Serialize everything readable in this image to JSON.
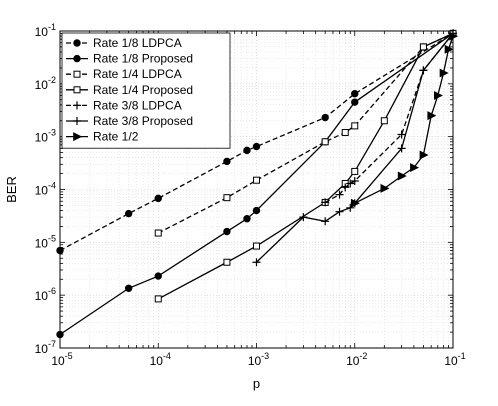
{
  "chart_data": {
    "type": "line",
    "xlabel": "p",
    "ylabel": "BER",
    "xscale": "log",
    "yscale": "log",
    "xlim": [
      1e-05,
      0.1
    ],
    "ylim": [
      1e-07,
      0.1
    ],
    "grid": true,
    "legend_position": "top-left",
    "x_tick_labels": [
      {
        "base": "10",
        "exp": "-5"
      },
      {
        "base": "10",
        "exp": "-4"
      },
      {
        "base": "10",
        "exp": "-3"
      },
      {
        "base": "10",
        "exp": "-2"
      },
      {
        "base": "10",
        "exp": "-1"
      }
    ],
    "y_tick_labels": [
      {
        "base": "10",
        "exp": "-7"
      },
      {
        "base": "10",
        "exp": "-6"
      },
      {
        "base": "10",
        "exp": "-5"
      },
      {
        "base": "10",
        "exp": "-4"
      },
      {
        "base": "10",
        "exp": "-3"
      },
      {
        "base": "10",
        "exp": "-2"
      },
      {
        "base": "10",
        "exp": "-1"
      }
    ],
    "series": [
      {
        "name": "Rate 1/8 LDPCA",
        "marker": "circle",
        "line": "dashed",
        "x": [
          1e-05,
          5e-05,
          0.0001,
          0.0005,
          0.0008,
          0.001,
          0.005,
          0.01,
          0.1
        ],
        "y": [
          7e-06,
          3.5e-05,
          6.8e-05,
          0.00034,
          0.00055,
          0.00065,
          0.0023,
          0.0065,
          0.09
        ]
      },
      {
        "name": "Rate 1/8 Proposed",
        "marker": "circle",
        "line": "solid",
        "x": [
          1e-05,
          5e-05,
          0.0001,
          0.0005,
          0.0008,
          0.001,
          0.005,
          0.01,
          0.1
        ],
        "y": [
          1.8e-07,
          1.35e-06,
          2.3e-06,
          1.6e-05,
          2.8e-05,
          4e-05,
          0.0008,
          0.0045,
          0.09
        ]
      },
      {
        "name": "Rate 1/4 LDPCA",
        "marker": "square-open",
        "line": "dashed",
        "x": [
          0.0001,
          0.0005,
          0.001,
          0.005,
          0.008,
          0.01,
          0.05,
          0.1
        ],
        "y": [
          1.5e-05,
          7e-05,
          0.00015,
          0.0008,
          0.0012,
          0.0016,
          0.05,
          0.09
        ]
      },
      {
        "name": "Rate 1/4 Proposed",
        "marker": "square-open",
        "line": "solid",
        "x": [
          0.0001,
          0.0005,
          0.001,
          0.005,
          0.008,
          0.01,
          0.02,
          0.05,
          0.1
        ],
        "y": [
          8.5e-07,
          4.2e-06,
          8.5e-06,
          5.7e-05,
          0.00013,
          0.00022,
          0.002,
          0.05,
          0.09
        ]
      },
      {
        "name": "Rate 3/8 LDPCA",
        "marker": "plus",
        "line": "dashed",
        "x": [
          0.005,
          0.007,
          0.008,
          0.009,
          0.01,
          0.03,
          0.05,
          0.1
        ],
        "y": [
          5.7e-05,
          8e-05,
          0.00011,
          0.00013,
          0.000145,
          0.0011,
          0.018,
          0.09
        ]
      },
      {
        "name": "Rate 3/8 Proposed",
        "marker": "plus",
        "line": "solid",
        "x": [
          0.001,
          0.003,
          0.005,
          0.007,
          0.009,
          0.01,
          0.03,
          0.05,
          0.1
        ],
        "y": [
          4.2e-06,
          3e-05,
          2.5e-05,
          3.8e-05,
          4.5e-05,
          5.5e-05,
          0.0006,
          0.018,
          0.09
        ]
      },
      {
        "name": "Rate 1/2",
        "marker": "triangle-right",
        "line": "solid",
        "x": [
          0.01,
          0.02,
          0.03,
          0.04,
          0.05,
          0.06,
          0.07,
          0.08,
          0.09,
          0.1
        ],
        "y": [
          5.5e-05,
          0.000105,
          0.00018,
          0.00026,
          0.00045,
          0.0025,
          0.006,
          0.016,
          0.045,
          0.08
        ]
      }
    ]
  }
}
